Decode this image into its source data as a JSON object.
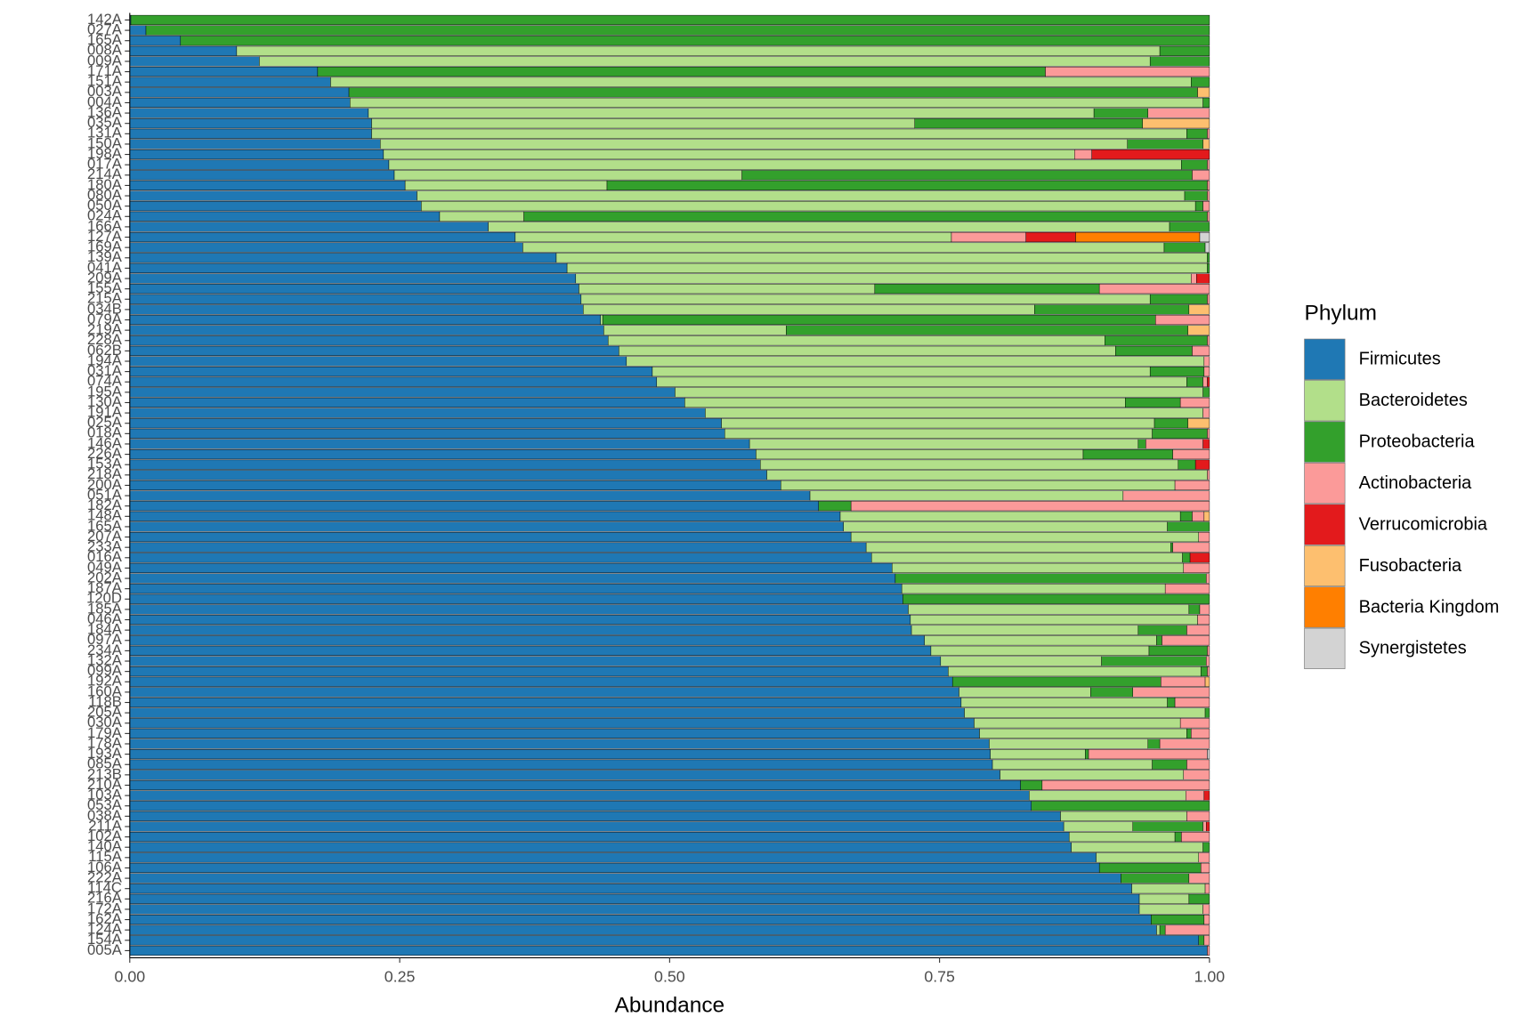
{
  "chart_data": {
    "type": "stacked-barh",
    "x_label": "Abundance",
    "legend_title": "Phylum",
    "legend": "right",
    "xlim": [
      0,
      1
    ],
    "xticks": [
      {
        "value": 0,
        "label": "0.00"
      },
      {
        "value": 0.25,
        "label": "0.25"
      },
      {
        "value": 0.5,
        "label": "0.50"
      },
      {
        "value": 0.75,
        "label": "0.75"
      },
      {
        "value": 1,
        "label": "1.00"
      }
    ],
    "categories": [
      "142A",
      "027A",
      "165A",
      "008A",
      "009A",
      "171A",
      "151A",
      "003A",
      "004A",
      "136A",
      "035A",
      "131A",
      "150A",
      "198A",
      "017A",
      "214A",
      "180A",
      "080A",
      "050A",
      "024A",
      "166A",
      "127A",
      "169A",
      "139A",
      "041A",
      "209A",
      "155A",
      "215A",
      "034B",
      "079A",
      "219A",
      "228A",
      "062B",
      "194A",
      "031A",
      "074A",
      "195A",
      "130A",
      "191A",
      "025A",
      "018A",
      "146A",
      "226A",
      "153A",
      "218A",
      "200A",
      "051A",
      "182A",
      "148A",
      "165A",
      "207A",
      "233A",
      "016A",
      "049A",
      "202A",
      "187A",
      "120D",
      "185A",
      "046A",
      "184A",
      "097A",
      "234A",
      "132A",
      "099A",
      "192A",
      "160A",
      "118B",
      "205A",
      "030A",
      "179A",
      "178A",
      "193A",
      "085A",
      "213B",
      "210A",
      "103A",
      "053A",
      "038A",
      "211A",
      "102A",
      "140A",
      "115A",
      "106A",
      "222A",
      "114C",
      "216A",
      "172A",
      "162A",
      "124A",
      "154A",
      "005A"
    ],
    "series": [
      {
        "name": "Firmicutes",
        "color": "#1f78b4",
        "values": [
          0.001,
          0.015,
          0.047,
          0.099,
          0.12,
          0.174,
          0.186,
          0.203,
          0.204,
          0.221,
          0.224,
          0.224,
          0.232,
          0.235,
          0.24,
          0.245,
          0.255,
          0.266,
          0.27,
          0.287,
          0.332,
          0.357,
          0.364,
          0.395,
          0.405,
          0.413,
          0.416,
          0.418,
          0.42,
          0.436,
          0.439,
          0.443,
          0.453,
          0.46,
          0.484,
          0.488,
          0.505,
          0.514,
          0.533,
          0.548,
          0.551,
          0.574,
          0.58,
          0.584,
          0.59,
          0.603,
          0.63,
          0.638,
          0.658,
          0.661,
          0.668,
          0.682,
          0.687,
          0.706,
          0.709,
          0.715,
          0.716,
          0.721,
          0.723,
          0.724,
          0.736,
          0.742,
          0.751,
          0.758,
          0.762,
          0.768,
          0.77,
          0.773,
          0.782,
          0.787,
          0.796,
          0.797,
          0.799,
          0.806,
          0.825,
          0.833,
          0.835,
          0.862,
          0.865,
          0.87,
          0.872,
          0.895,
          0.898,
          0.918,
          0.928,
          0.935,
          0.935,
          0.946,
          0.951,
          0.99,
          0.998
        ]
      },
      {
        "name": "Bacteroidetes",
        "color": "#b2df8a",
        "values": [
          0,
          0,
          0,
          0.855,
          0.825,
          0,
          0.797,
          0,
          0.79,
          0.672,
          0.503,
          0.755,
          0.692,
          0.64,
          0.734,
          0.322,
          0.187,
          0.711,
          0.717,
          0.078,
          0.631,
          0.404,
          0.594,
          0.603,
          0.593,
          0.57,
          0.274,
          0.527,
          0.418,
          0.002,
          0.169,
          0.46,
          0.46,
          0.535,
          0.461,
          0.491,
          0.489,
          0.408,
          0.461,
          0.401,
          0.396,
          0.36,
          0.303,
          0.387,
          0.408,
          0.365,
          0.29,
          0,
          0.315,
          0.3,
          0.322,
          0.282,
          0.288,
          0.27,
          0,
          0.244,
          0,
          0.26,
          0.266,
          0.21,
          0.215,
          0.202,
          0.149,
          0.234,
          0,
          0.122,
          0.191,
          0.223,
          0.191,
          0.192,
          0.147,
          0.088,
          0.148,
          0.17,
          0,
          0.145,
          0,
          0.117,
          0.064,
          0.098,
          0.122,
          0.095,
          0,
          0,
          0.068,
          0.046,
          0.059,
          0,
          0.003,
          0,
          0
        ]
      },
      {
        "name": "Proteobacteria",
        "color": "#33a02c",
        "values": [
          0.999,
          0.985,
          0.953,
          0.046,
          0.055,
          0.674,
          0.017,
          0.786,
          0.006,
          0.05,
          0.211,
          0.019,
          0.07,
          0,
          0.024,
          0.417,
          0.556,
          0.021,
          0.007,
          0.633,
          0.037,
          0,
          0.038,
          0.002,
          0.002,
          0,
          0.208,
          0.053,
          0.143,
          0.512,
          0.372,
          0.095,
          0.071,
          0,
          0.05,
          0.015,
          0.006,
          0.051,
          0,
          0.031,
          0.051,
          0.007,
          0.083,
          0.016,
          0,
          0,
          0,
          0.03,
          0.011,
          0.039,
          0,
          0.002,
          0.007,
          0,
          0.288,
          0,
          0.284,
          0.01,
          0,
          0.045,
          0.005,
          0.054,
          0.097,
          0.006,
          0.193,
          0.039,
          0.007,
          0.004,
          0,
          0.004,
          0.011,
          0.003,
          0.032,
          0,
          0.02,
          0,
          0.165,
          0,
          0.065,
          0.006,
          0.006,
          0,
          0.094,
          0.063,
          0,
          0.019,
          0,
          0.049,
          0.005,
          0.005,
          0
        ]
      },
      {
        "name": "Actinobacteria",
        "color": "#fb9a99",
        "values": [
          0,
          0,
          0,
          0,
          0,
          0.152,
          0,
          0,
          0,
          0.057,
          0,
          0.002,
          0,
          0.016,
          0.002,
          0.016,
          0.002,
          0.002,
          0.006,
          0.002,
          0,
          0.069,
          0,
          0,
          0,
          0.005,
          0.102,
          0.002,
          0,
          0.05,
          0,
          0.002,
          0.016,
          0.005,
          0.005,
          0.004,
          0,
          0.027,
          0.006,
          0,
          0.002,
          0.053,
          0.034,
          0,
          0.002,
          0.032,
          0.08,
          0.332,
          0.011,
          0,
          0.01,
          0.034,
          0,
          0.024,
          0.003,
          0.041,
          0,
          0.009,
          0.011,
          0.021,
          0.044,
          0.002,
          0.003,
          0.002,
          0.041,
          0.071,
          0.032,
          0,
          0.027,
          0.017,
          0.046,
          0.11,
          0.021,
          0.024,
          0.155,
          0.017,
          0,
          0.021,
          0.003,
          0.026,
          0,
          0.01,
          0.008,
          0.019,
          0.004,
          0,
          0.006,
          0.005,
          0.041,
          0.005,
          0.002
        ]
      },
      {
        "name": "Verrucomicrobia",
        "color": "#e31a1c",
        "values": [
          0,
          0,
          0,
          0,
          0,
          0,
          0,
          0,
          0,
          0,
          0,
          0,
          0,
          0.109,
          0,
          0,
          0,
          0,
          0,
          0,
          0,
          0.046,
          0,
          0,
          0,
          0.012,
          0,
          0,
          0,
          0,
          0,
          0,
          0,
          0,
          0,
          0.002,
          0,
          0,
          0,
          0,
          0,
          0.006,
          0,
          0.013,
          0,
          0,
          0,
          0,
          0,
          0,
          0,
          0,
          0.018,
          0,
          0,
          0,
          0,
          0,
          0,
          0,
          0,
          0,
          0,
          0,
          0,
          0,
          0,
          0,
          0,
          0,
          0,
          0,
          0,
          0,
          0,
          0.005,
          0,
          0,
          0.003,
          0,
          0,
          0,
          0,
          0,
          0,
          0,
          0,
          0,
          0,
          0,
          0
        ]
      },
      {
        "name": "Fusobacteria",
        "color": "#fdbf6f",
        "values": [
          0,
          0,
          0,
          0,
          0,
          0,
          0,
          0.011,
          0,
          0,
          0.062,
          0,
          0.006,
          0,
          0,
          0,
          0,
          0,
          0,
          0,
          0,
          0,
          0,
          0,
          0,
          0,
          0,
          0,
          0.019,
          0,
          0.02,
          0,
          0,
          0,
          0,
          0,
          0,
          0,
          0,
          0.02,
          0,
          0,
          0,
          0,
          0,
          0,
          0,
          0,
          0.005,
          0,
          0,
          0,
          0,
          0,
          0,
          0,
          0,
          0,
          0,
          0,
          0,
          0,
          0,
          0,
          0.004,
          0,
          0,
          0,
          0,
          0,
          0,
          0,
          0,
          0,
          0,
          0,
          0,
          0,
          0,
          0,
          0,
          0,
          0,
          0,
          0,
          0,
          0,
          0,
          0,
          0,
          0
        ]
      },
      {
        "name": "Bacteria Kingdom",
        "color": "#ff7f00",
        "values": [
          0,
          0,
          0,
          0,
          0,
          0,
          0,
          0,
          0,
          0,
          0,
          0,
          0,
          0,
          0,
          0,
          0,
          0,
          0,
          0,
          0,
          0.115,
          0,
          0,
          0,
          0,
          0,
          0,
          0,
          0,
          0,
          0,
          0,
          0,
          0,
          0,
          0,
          0,
          0,
          0,
          0,
          0,
          0,
          0,
          0,
          0,
          0,
          0,
          0,
          0,
          0,
          0,
          0,
          0,
          0,
          0,
          0,
          0,
          0,
          0,
          0,
          0,
          0,
          0,
          0,
          0,
          0,
          0,
          0,
          0,
          0,
          0,
          0,
          0,
          0,
          0,
          0,
          0,
          0,
          0,
          0,
          0,
          0,
          0,
          0,
          0,
          0,
          0,
          0,
          0,
          0
        ]
      },
      {
        "name": "Synergistetes",
        "color": "#d3d3d3",
        "values": [
          0,
          0,
          0,
          0,
          0,
          0,
          0,
          0,
          0,
          0,
          0,
          0,
          0,
          0,
          0,
          0,
          0,
          0,
          0,
          0,
          0,
          0.009,
          0.004,
          0,
          0,
          0,
          0,
          0,
          0,
          0,
          0,
          0,
          0,
          0,
          0,
          0,
          0,
          0,
          0,
          0,
          0,
          0,
          0,
          0,
          0,
          0,
          0,
          0,
          0,
          0,
          0,
          0,
          0,
          0,
          0,
          0,
          0,
          0,
          0,
          0,
          0,
          0,
          0,
          0,
          0,
          0,
          0,
          0,
          0,
          0,
          0,
          0.002,
          0,
          0,
          0,
          0,
          0,
          0,
          0,
          0,
          0,
          0,
          0,
          0,
          0,
          0,
          0,
          0,
          0,
          0,
          0
        ]
      }
    ]
  }
}
